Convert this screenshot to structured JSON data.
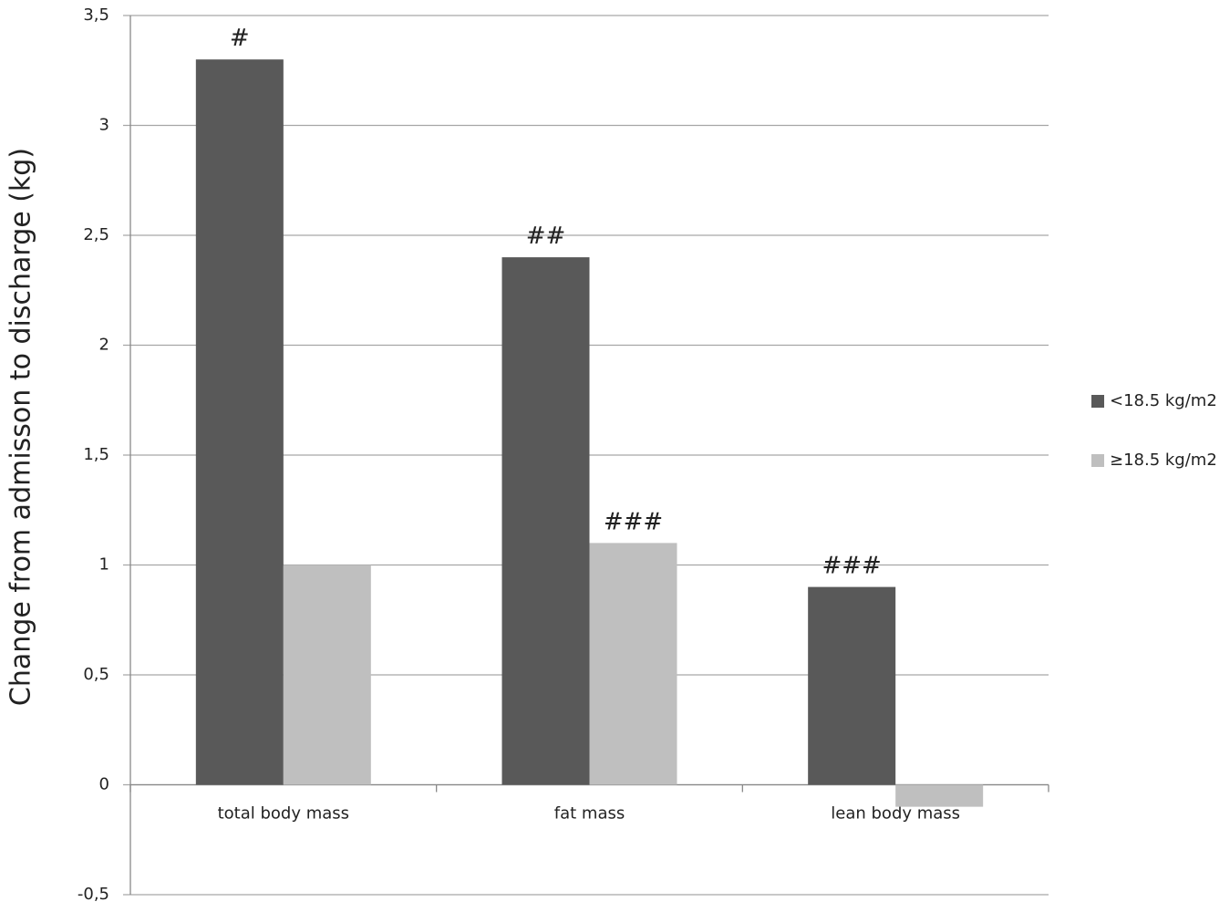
{
  "chart_data": {
    "type": "bar",
    "y_label": "Change from admisson to discharge (kg)",
    "categories": [
      "total body mass",
      "fat mass",
      "lean body mass"
    ],
    "series": [
      {
        "name": "<18.5 kg/m2",
        "color": "#595959",
        "values": [
          3.3,
          2.4,
          0.9
        ],
        "annotations": [
          "#",
          "##",
          "###"
        ]
      },
      {
        "name": "≥18.5 kg/m2",
        "color": "#bfbfbf",
        "values": [
          1.0,
          1.1,
          -0.1
        ],
        "annotations": [
          null,
          "###",
          null
        ]
      }
    ],
    "ylim": [
      -0.5,
      3.5
    ],
    "yticks": [
      {
        "value": -0.5,
        "label": "-0,5"
      },
      0,
      {
        "value": 0.5,
        "label": "0,5"
      },
      1,
      {
        "value": 1.5,
        "label": "1,5"
      },
      2,
      {
        "value": 2.5,
        "label": "2,5"
      },
      3,
      {
        "value": 3.5,
        "label": "3,5"
      }
    ],
    "grid": true,
    "legend": "right"
  }
}
